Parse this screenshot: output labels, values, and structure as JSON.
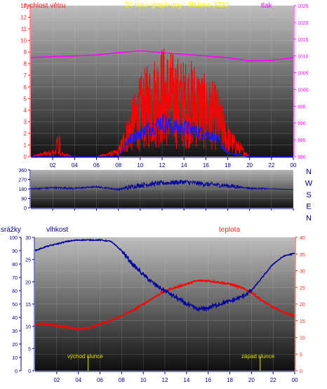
{
  "title": "24 hour graph day : 30June 2020",
  "panel1": {
    "label_left": "rychlost větru",
    "label_right": "tlak",
    "left_ticks": [
      "0",
      "1",
      "2",
      "3",
      "4",
      "5",
      "6",
      "7",
      "8",
      "9",
      "10",
      "11",
      "12",
      "13"
    ],
    "right_ticks": [
      "980",
      "985",
      "990",
      "995",
      "1000",
      "1005",
      "1010",
      "1015",
      "1020",
      "1025"
    ],
    "x_ticks": [
      "02",
      "04",
      "06",
      "08",
      "10",
      "12",
      "14",
      "16",
      "18",
      "20",
      "22",
      "00"
    ]
  },
  "panel2": {
    "left_ticks": [
      "0",
      "90",
      "180",
      "270",
      "360"
    ],
    "compass": [
      "N",
      "W",
      "S",
      "E",
      "N"
    ],
    "x_ticks": []
  },
  "panel3": {
    "label_left": "srážky",
    "label_mid": "vlhkost",
    "label_right": "teplota",
    "rain_ticks": [
      "0",
      "10",
      "20",
      "30",
      "40",
      "50",
      "60",
      "70",
      "80",
      "90",
      "100"
    ],
    "hum_ticks": [
      "0",
      "5",
      "10",
      "15",
      "20",
      "25",
      "30"
    ],
    "temp_ticks": [
      "0",
      "5",
      "10",
      "15",
      "20",
      "25",
      "30",
      "35",
      "40"
    ],
    "x_ticks": [
      "02",
      "04",
      "06",
      "08",
      "10",
      "12",
      "14",
      "16",
      "18",
      "20",
      "22",
      "00"
    ],
    "sunrise_label": "východ slunce",
    "sunset_label": "západ slunce"
  },
  "colors": {
    "wind": "#ff0000",
    "gust": "#1a1aff",
    "pressure": "#ff00ff",
    "direction": "#0a0a9a",
    "humidity": "#0000a0",
    "temperature": "#ff0000",
    "axis_red": "#ff2020",
    "axis_magenta": "#ff00ff",
    "axis_navy": "#000080",
    "title": "#ffff00",
    "sun_marker": "#c8c800"
  },
  "chart_data": [
    {
      "type": "line",
      "series": [
        {
          "x": [
            0,
            2,
            4,
            6,
            8,
            10,
            12,
            14,
            16,
            18,
            20,
            22,
            24
          ],
          "values": [
            1009.5,
            1009.8,
            1010.0,
            1010.3,
            1011.0,
            1011.5,
            1011.0,
            1010.5,
            1010.0,
            1009.5,
            1008.5,
            1008.7,
            1009.5
          ]
        },
        {
          "x": [
            0,
            2,
            4,
            6,
            8,
            9,
            10,
            11,
            12,
            13,
            14,
            15,
            16,
            17,
            18,
            19,
            20,
            22,
            24
          ],
          "values": [
            0,
            0.5,
            0,
            0,
            0.5,
            3,
            5,
            6,
            7,
            6.5,
            6,
            6,
            5,
            4.5,
            2,
            1,
            0,
            0,
            0
          ]
        },
        {
          "x": [
            0,
            8,
            9,
            10,
            11,
            12,
            13,
            14,
            15,
            16,
            17,
            18,
            20,
            24
          ],
          "values": [
            0,
            0,
            1.5,
            2,
            2.5,
            3,
            2.5,
            2.5,
            2.2,
            2,
            1.5,
            0.3,
            0,
            0
          ]
        }
      ],
      "ylim": [
        0,
        13
      ],
      "xlim": [
        0,
        24
      ]
    },
    {
      "type": "line",
      "series": [
        {
          "x": [
            0,
            2,
            4,
            6,
            8,
            10,
            12,
            14,
            16,
            18,
            20,
            22,
            24
          ],
          "values": [
            180,
            190,
            185,
            200,
            175,
            215,
            235,
            245,
            225,
            210,
            185,
            180,
            175
          ]
        }
      ],
      "ylim": [
        0,
        360
      ]
    },
    {
      "type": "line",
      "series": [
        {
          "x": [
            0,
            1,
            2,
            3,
            4,
            5,
            6,
            7,
            8,
            9,
            10,
            11,
            12,
            13,
            14,
            15,
            16,
            17,
            18,
            19,
            20,
            21,
            22,
            23,
            24
          ],
          "values": [
            14,
            14,
            13.5,
            13,
            12.5,
            13,
            14,
            15,
            16.5,
            18,
            20,
            22,
            24,
            25,
            26,
            27,
            27,
            26.5,
            26,
            25,
            23.5,
            21,
            19,
            17.5,
            16.5
          ]
        },
        {
          "x": [
            0,
            1,
            2,
            3,
            4,
            5,
            6,
            7,
            8,
            9,
            10,
            11,
            12,
            13,
            14,
            15,
            16,
            17,
            18,
            19,
            20,
            21,
            22,
            23,
            24
          ],
          "values": [
            90,
            93,
            95,
            97,
            98,
            98,
            98,
            97,
            90,
            80,
            72,
            65,
            60,
            55,
            50,
            46,
            47,
            50,
            52,
            55,
            60,
            70,
            80,
            86,
            88
          ]
        }
      ],
      "ylim": [
        0,
        100
      ]
    }
  ]
}
